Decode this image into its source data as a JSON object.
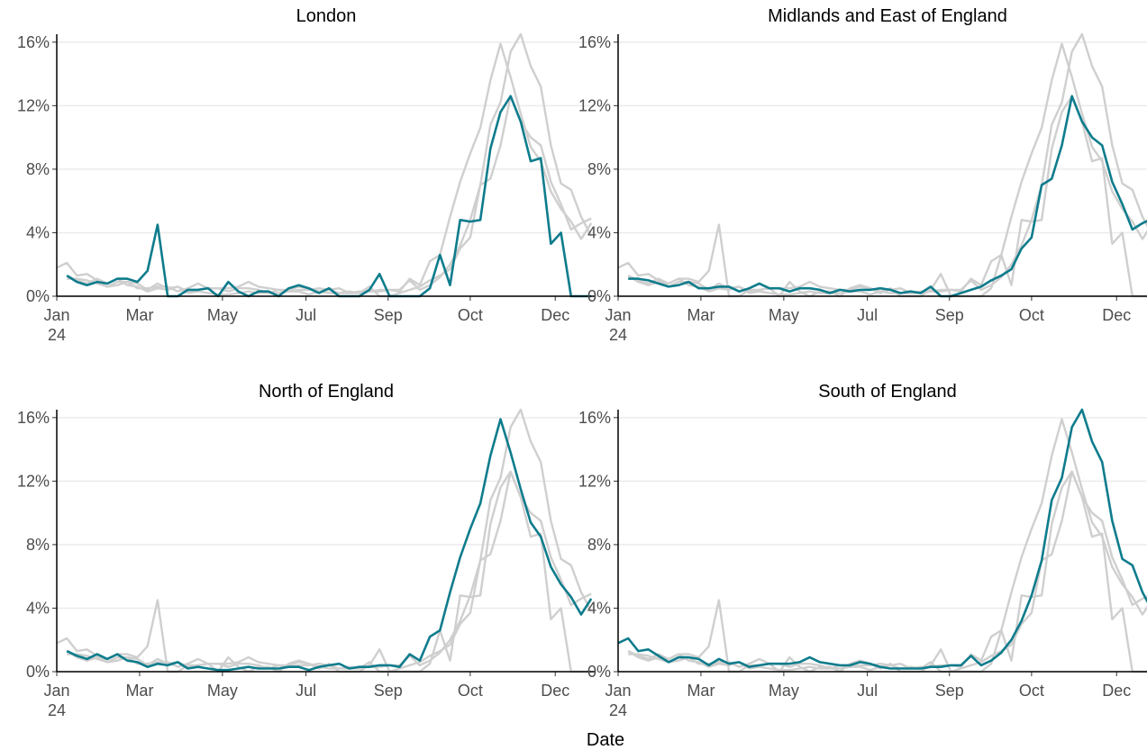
{
  "chart_data": {
    "type": "line",
    "x_label": "Date",
    "x": [
      0,
      7,
      14,
      21,
      28,
      35,
      42,
      49,
      56,
      63,
      70,
      77,
      84,
      91,
      98,
      105,
      112,
      119,
      126,
      133,
      140,
      147,
      154,
      161,
      168,
      175,
      182,
      189,
      196,
      203,
      210,
      217,
      224,
      231,
      238,
      245,
      252,
      259,
      266,
      273,
      280,
      287,
      294,
      301,
      308,
      315,
      322,
      329,
      336,
      343,
      350,
      357,
      364,
      371
    ],
    "xlim": [
      0,
      374
    ],
    "xticks": [
      {
        "value": 0,
        "label": "Jan\n24"
      },
      {
        "value": 57.5,
        "label": "Mar"
      },
      {
        "value": 115,
        "label": "May"
      },
      {
        "value": 173,
        "label": "Jul"
      },
      {
        "value": 230,
        "label": "Sep"
      },
      {
        "value": 287,
        "label": "Oct"
      },
      {
        "value": 346,
        "label": "Dec"
      }
    ],
    "ylim": [
      0,
      16.5
    ],
    "yticks": [
      {
        "value": 0,
        "label": "0%"
      },
      {
        "value": 4,
        "label": "4%"
      },
      {
        "value": 8,
        "label": "8%"
      },
      {
        "value": 12,
        "label": "12%"
      },
      {
        "value": 16,
        "label": "16%"
      }
    ],
    "grid": true,
    "highlight_color": "#0e7c8c",
    "other_color": "#cfcfcf",
    "series": [
      {
        "name": "London",
        "values": [
          null,
          1.3,
          0.9,
          0.7,
          0.9,
          0.8,
          1.1,
          1.1,
          0.9,
          1.6,
          4.5,
          0,
          0,
          0.4,
          0.4,
          0.5,
          0,
          0.9,
          0.3,
          0,
          0.3,
          0.3,
          0,
          0.5,
          0.7,
          0.5,
          0.2,
          0.5,
          0,
          0,
          0,
          0.4,
          1.4,
          0,
          0,
          0,
          0,
          0.5,
          2.6,
          0.7,
          4.8,
          4.7,
          4.8,
          9.3,
          11.6,
          12.6,
          11.0,
          8.5,
          8.7,
          3.3,
          4.0,
          0,
          0,
          0
        ]
      },
      {
        "name": "Midlands and East of England",
        "values": [
          null,
          1.1,
          1.1,
          1.0,
          0.8,
          0.6,
          0.7,
          0.9,
          0.5,
          0.5,
          0.6,
          0.6,
          0.3,
          0.5,
          0.8,
          0.5,
          0.5,
          0.3,
          0.5,
          0.5,
          0.4,
          0.2,
          0.4,
          0.3,
          0.4,
          0.4,
          0.5,
          0.4,
          0.2,
          0.3,
          0.2,
          0.6,
          0,
          0,
          0.2,
          0.4,
          0.6,
          1.0,
          1.3,
          1.7,
          3.0,
          3.7,
          7.0,
          7.4,
          9.5,
          12.6,
          11.0,
          10.0,
          9.5,
          7.2,
          5.8,
          4.2,
          4.6,
          4.9
        ]
      },
      {
        "name": "North of England",
        "values": [
          null,
          1.3,
          1.0,
          0.8,
          1.1,
          0.8,
          1.1,
          0.7,
          0.6,
          0.3,
          0.5,
          0.4,
          0.6,
          0.2,
          0.3,
          0.2,
          0.1,
          0.1,
          0.2,
          0.3,
          0.2,
          0.2,
          0.2,
          0.3,
          0.3,
          0.1,
          0.3,
          0.4,
          0.5,
          0.2,
          0.3,
          0.3,
          0.4,
          0.4,
          0.3,
          1.1,
          0.7,
          2.2,
          2.6,
          5.0,
          7.2,
          9.0,
          10.6,
          13.6,
          15.9,
          13.8,
          11.5,
          9.4,
          8.5,
          6.6,
          5.5,
          4.7,
          3.6,
          4.6
        ]
      },
      {
        "name": "South of England",
        "values": [
          1.8,
          2.1,
          1.3,
          1.4,
          1.0,
          0.6,
          0.9,
          0.9,
          0.8,
          0.4,
          0.8,
          0.5,
          0.6,
          0.3,
          0.4,
          0.5,
          0.5,
          0.5,
          0.6,
          0.9,
          0.6,
          0.5,
          0.4,
          0.4,
          0.6,
          0.5,
          0.3,
          0.2,
          0.2,
          0.2,
          0.2,
          0.3,
          0.3,
          0.4,
          0.4,
          1.0,
          0.4,
          0.7,
          1.2,
          2.0,
          3.2,
          4.8,
          7.0,
          10.8,
          12.2,
          15.4,
          16.5,
          14.5,
          13.2,
          9.5,
          7.1,
          6.7,
          5.0,
          3.8
        ]
      }
    ]
  }
}
